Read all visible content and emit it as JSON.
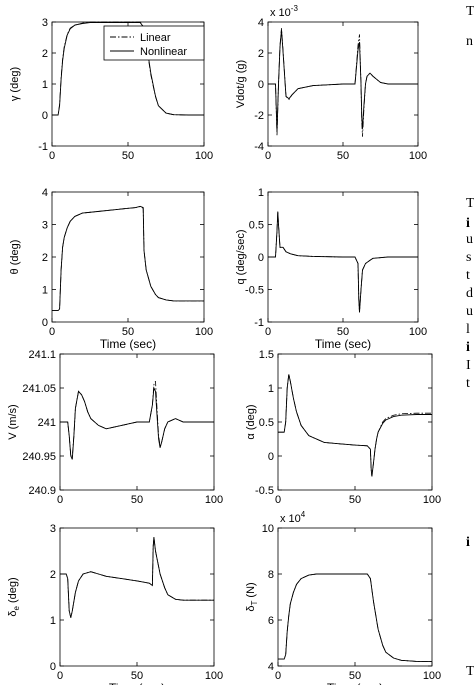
{
  "chart_data": [
    {
      "type": "line",
      "ylabel": "γ (deg)",
      "xlabel": "",
      "xlim": [
        0,
        100
      ],
      "ylim": [
        -1,
        3
      ],
      "xticks": [
        "0",
        "50",
        "100"
      ],
      "yticks": [
        "-1",
        "0",
        "1",
        "2",
        "3"
      ],
      "legend": {
        "placement": "top",
        "entries": [
          "Linear",
          "Nonlinear"
        ]
      },
      "series": [
        {
          "name": "Linear",
          "style": "dash-dot",
          "x": [
            0,
            4,
            5,
            6,
            7,
            8,
            10,
            12,
            15,
            20,
            25,
            30,
            40,
            50,
            55,
            58,
            60,
            62,
            65,
            68,
            70,
            75,
            80,
            90,
            100
          ],
          "y": [
            0,
            0,
            0.35,
            1.2,
            1.8,
            2.2,
            2.6,
            2.8,
            2.9,
            2.96,
            3,
            3,
            3,
            3,
            3,
            3,
            2.85,
            2.3,
            1.3,
            0.6,
            0.3,
            0.06,
            0.01,
            0,
            0
          ]
        },
        {
          "name": "Nonlinear",
          "style": "solid",
          "x": [
            0,
            4,
            5,
            6,
            7,
            8,
            10,
            12,
            15,
            20,
            25,
            30,
            40,
            50,
            55,
            58,
            60,
            62,
            65,
            68,
            70,
            75,
            80,
            90,
            100
          ],
          "y": [
            0,
            0,
            0.3,
            1.15,
            1.75,
            2.15,
            2.58,
            2.78,
            2.9,
            2.95,
            2.98,
            2.98,
            2.98,
            2.98,
            2.98,
            2.98,
            2.85,
            2.35,
            1.35,
            0.62,
            0.3,
            0.06,
            0.01,
            0,
            0
          ]
        }
      ]
    },
    {
      "type": "line",
      "ylabel": "Vdot/g (g)",
      "xlabel": "",
      "scale_label": "x 10",
      "scale_exponent": "-3",
      "xlim": [
        0,
        100
      ],
      "ylim": [
        -4,
        4
      ],
      "xticks": [
        "0",
        "50",
        "100"
      ],
      "yticks": [
        "-4",
        "-2",
        "0",
        "2",
        "4"
      ],
      "series": [
        {
          "name": "Linear",
          "style": "dash-dot",
          "x": [
            0,
            4,
            5,
            6,
            7,
            8,
            9,
            10,
            12,
            14,
            16,
            20,
            30,
            40,
            50,
            55,
            58,
            60,
            61,
            62,
            62.5,
            63,
            64,
            65,
            66,
            68,
            70,
            75,
            80,
            90,
            100
          ],
          "y": [
            0,
            0,
            0,
            -3.3,
            0,
            2.5,
            3.6,
            2.2,
            -0.8,
            -1,
            -0.7,
            -0.3,
            -0.1,
            -0.05,
            0,
            0,
            0,
            2.5,
            3.2,
            0,
            -2.5,
            -3.4,
            -1.5,
            0,
            0.5,
            0.7,
            0.5,
            0.1,
            0,
            0,
            0
          ]
        },
        {
          "name": "Nonlinear",
          "style": "solid",
          "x": [
            0,
            4,
            5,
            6,
            7,
            8,
            9,
            10,
            12,
            14,
            16,
            20,
            30,
            40,
            50,
            55,
            58,
            60,
            61,
            62,
            62.5,
            63,
            64,
            65,
            66,
            68,
            70,
            75,
            80,
            90,
            100
          ],
          "y": [
            0,
            0,
            0,
            -3.1,
            0,
            2.4,
            3.5,
            2.1,
            -0.8,
            -0.95,
            -0.7,
            -0.3,
            -0.1,
            -0.05,
            0,
            0,
            0,
            2.2,
            2.7,
            0,
            -2.2,
            -2.9,
            -1.3,
            0,
            0.5,
            0.7,
            0.5,
            0.1,
            0,
            0,
            0
          ]
        }
      ]
    },
    {
      "type": "line",
      "ylabel": "θ (deg)",
      "xlabel": "Time (sec)",
      "xlim": [
        0,
        100
      ],
      "ylim": [
        0,
        4
      ],
      "xticks": [
        "0",
        "50",
        "100"
      ],
      "yticks": [
        "0",
        "1",
        "2",
        "3",
        "4"
      ],
      "series": [
        {
          "name": "Linear",
          "style": "dash-dot",
          "x": [
            0,
            4,
            5,
            6,
            7,
            8,
            10,
            12,
            15,
            20,
            30,
            40,
            50,
            55,
            58,
            60,
            60.5,
            62,
            65,
            68,
            70,
            75,
            80,
            90,
            100
          ],
          "y": [
            0.35,
            0.35,
            0.4,
            1.6,
            2.3,
            2.6,
            2.9,
            3.1,
            3.25,
            3.35,
            3.4,
            3.45,
            3.5,
            3.52,
            3.55,
            3.5,
            2.2,
            1.6,
            1.1,
            0.85,
            0.75,
            0.68,
            0.65,
            0.65,
            0.65
          ]
        },
        {
          "name": "Nonlinear",
          "style": "solid",
          "x": [
            0,
            4,
            5,
            6,
            7,
            8,
            10,
            12,
            15,
            20,
            30,
            40,
            50,
            55,
            58,
            60,
            60.5,
            62,
            65,
            68,
            70,
            75,
            80,
            90,
            100
          ],
          "y": [
            0.35,
            0.35,
            0.4,
            1.6,
            2.3,
            2.6,
            2.9,
            3.1,
            3.25,
            3.35,
            3.4,
            3.45,
            3.5,
            3.52,
            3.56,
            3.52,
            2.2,
            1.6,
            1.1,
            0.85,
            0.75,
            0.68,
            0.65,
            0.65,
            0.65
          ]
        }
      ]
    },
    {
      "type": "line",
      "ylabel": "q (deg/sec)",
      "xlabel": "Time (sec)",
      "xlim": [
        0,
        100
      ],
      "ylim": [
        -1,
        1
      ],
      "xticks": [
        "0",
        "50",
        "100"
      ],
      "yticks": [
        "-1",
        "-0.5",
        "0",
        "0.5",
        "1"
      ],
      "series": [
        {
          "name": "Linear",
          "style": "dash-dot",
          "x": [
            0,
            4,
            5,
            6,
            6.5,
            7,
            8,
            9,
            10,
            12,
            15,
            20,
            30,
            50,
            58,
            60,
            60.5,
            61,
            62,
            63,
            64,
            65,
            68,
            70,
            80,
            100
          ],
          "y": [
            0,
            0,
            0,
            0.4,
            0.7,
            0.5,
            0.15,
            0.15,
            0.15,
            0.08,
            0.05,
            0.02,
            0.01,
            0,
            0,
            -0.1,
            -0.65,
            -0.85,
            -0.5,
            -0.2,
            -0.15,
            -0.1,
            -0.05,
            -0.02,
            0,
            0
          ]
        },
        {
          "name": "Nonlinear",
          "style": "solid",
          "x": [
            0,
            4,
            5,
            6,
            6.5,
            7,
            8,
            9,
            10,
            12,
            15,
            20,
            30,
            50,
            58,
            60,
            60.5,
            61,
            62,
            63,
            64,
            65,
            68,
            70,
            80,
            100
          ],
          "y": [
            0,
            0,
            0,
            0.4,
            0.7,
            0.5,
            0.15,
            0.15,
            0.15,
            0.08,
            0.05,
            0.02,
            0.01,
            0,
            0,
            -0.1,
            -0.65,
            -0.85,
            -0.5,
            -0.2,
            -0.15,
            -0.1,
            -0.05,
            -0.02,
            0,
            0
          ]
        }
      ]
    },
    {
      "type": "line",
      "ylabel": "V (m/s)",
      "xlabel": "",
      "xlim": [
        0,
        100
      ],
      "ylim": [
        240.9,
        241.1
      ],
      "xticks": [
        "0",
        "50",
        "100"
      ],
      "yticks": [
        "240.9",
        "240.95",
        "241",
        "241.05",
        "241.1"
      ],
      "series": [
        {
          "name": "Linear",
          "style": "dash-dot",
          "x": [
            0,
            4,
            5,
            6,
            7,
            8,
            9,
            10,
            12,
            14,
            16,
            18,
            20,
            25,
            30,
            40,
            50,
            58,
            60,
            61,
            62,
            63,
            64,
            65,
            66,
            68,
            70,
            75,
            80,
            90,
            100
          ],
          "y": [
            241,
            241,
            241,
            240.98,
            240.95,
            240.95,
            240.98,
            241.02,
            241.045,
            241.04,
            241.03,
            241.015,
            241.005,
            240.995,
            240.99,
            240.995,
            241,
            241,
            241.025,
            241.055,
            241.06,
            241.02,
            240.98,
            240.965,
            240.97,
            240.99,
            241,
            241.005,
            241,
            241,
            241
          ]
        },
        {
          "name": "Nonlinear",
          "style": "solid",
          "x": [
            0,
            4,
            5,
            6,
            7,
            8,
            9,
            10,
            12,
            14,
            16,
            18,
            20,
            25,
            30,
            40,
            50,
            58,
            60,
            61,
            62,
            63,
            64,
            65,
            66,
            68,
            70,
            75,
            80,
            90,
            100
          ],
          "y": [
            241,
            241,
            241,
            240.98,
            240.95,
            240.945,
            240.98,
            241.02,
            241.045,
            241.04,
            241.03,
            241.015,
            241.005,
            240.995,
            240.99,
            240.995,
            241,
            241,
            241.025,
            241.05,
            241.045,
            241.01,
            240.975,
            240.962,
            240.97,
            240.99,
            241,
            241.005,
            241,
            241,
            241
          ]
        }
      ]
    },
    {
      "type": "line",
      "ylabel": "α (deg)",
      "xlabel": "",
      "xlim": [
        0,
        100
      ],
      "ylim": [
        -0.5,
        1.5
      ],
      "xticks": [
        "0",
        "50",
        "100"
      ],
      "yticks": [
        "-0.5",
        "0",
        "0.5",
        "1",
        "1.5"
      ],
      "series": [
        {
          "name": "Linear",
          "style": "dash-dot",
          "x": [
            0,
            4,
            5,
            6,
            7,
            8,
            10,
            12,
            15,
            20,
            30,
            40,
            50,
            58,
            60,
            60.5,
            61,
            62,
            63,
            64,
            65,
            68,
            70,
            75,
            80,
            90,
            100
          ],
          "y": [
            0.35,
            0.35,
            0.5,
            1.0,
            1.2,
            1.1,
            0.85,
            0.65,
            0.45,
            0.3,
            0.2,
            0.18,
            0.16,
            0.15,
            0.1,
            -0.2,
            -0.3,
            -0.1,
            0.1,
            0.25,
            0.35,
            0.5,
            0.55,
            0.6,
            0.62,
            0.63,
            0.63
          ]
        },
        {
          "name": "Nonlinear",
          "style": "solid",
          "x": [
            0,
            4,
            5,
            6,
            7,
            8,
            10,
            12,
            15,
            20,
            30,
            40,
            50,
            58,
            60,
            60.5,
            61,
            62,
            63,
            64,
            65,
            68,
            70,
            75,
            80,
            90,
            100
          ],
          "y": [
            0.35,
            0.35,
            0.5,
            1.0,
            1.2,
            1.1,
            0.85,
            0.65,
            0.45,
            0.3,
            0.2,
            0.18,
            0.16,
            0.15,
            0.1,
            -0.2,
            -0.3,
            -0.1,
            0.1,
            0.25,
            0.35,
            0.48,
            0.53,
            0.58,
            0.6,
            0.61,
            0.61
          ]
        }
      ]
    },
    {
      "type": "line",
      "ylabel": "δ_e (deg)",
      "xlabel": "Time (sec)",
      "xlim": [
        0,
        100
      ],
      "ylim": [
        0,
        3
      ],
      "xticks": [
        "0",
        "50",
        "100"
      ],
      "yticks": [
        "0",
        "1",
        "2",
        "3"
      ],
      "series": [
        {
          "name": "Linear",
          "style": "dash-dot",
          "x": [
            0,
            4,
            5,
            6,
            7,
            8,
            10,
            12,
            15,
            20,
            25,
            30,
            40,
            50,
            58,
            60,
            60.5,
            61,
            62,
            65,
            68,
            70,
            75,
            80,
            90,
            100
          ],
          "y": [
            2,
            2,
            1.9,
            1.2,
            1.05,
            1.2,
            1.6,
            1.85,
            2,
            2.05,
            2,
            1.95,
            1.9,
            1.85,
            1.8,
            1.75,
            2.6,
            2.8,
            2.5,
            2,
            1.7,
            1.55,
            1.45,
            1.43,
            1.43,
            1.43
          ]
        },
        {
          "name": "Nonlinear",
          "style": "solid",
          "x": [
            0,
            4,
            5,
            6,
            7,
            8,
            10,
            12,
            15,
            20,
            25,
            30,
            40,
            50,
            58,
            60,
            60.5,
            61,
            62,
            65,
            68,
            70,
            75,
            80,
            90,
            100
          ],
          "y": [
            2,
            2,
            1.9,
            1.2,
            1.05,
            1.2,
            1.6,
            1.85,
            2,
            2.05,
            2,
            1.95,
            1.9,
            1.85,
            1.8,
            1.75,
            2.6,
            2.8,
            2.5,
            2,
            1.7,
            1.55,
            1.45,
            1.43,
            1.43,
            1.43
          ]
        }
      ]
    },
    {
      "type": "line",
      "ylabel": "δ_T (N)",
      "xlabel": "Time (sec)",
      "scale_label": "x 10",
      "scale_exponent": "4",
      "xlim": [
        0,
        100
      ],
      "ylim": [
        4,
        10
      ],
      "xticks": [
        "0",
        "50",
        "100"
      ],
      "yticks": [
        "4",
        "6",
        "8",
        "10"
      ],
      "series": [
        {
          "name": "Linear",
          "style": "dash-dot",
          "x": [
            0,
            4,
            5,
            6,
            7,
            8,
            10,
            12,
            15,
            20,
            25,
            30,
            40,
            50,
            58,
            60,
            62,
            65,
            68,
            70,
            75,
            80,
            90,
            100
          ],
          "y": [
            4.3,
            4.3,
            4.5,
            5.5,
            6.2,
            6.7,
            7.2,
            7.55,
            7.8,
            7.95,
            8,
            8,
            8,
            8,
            8,
            7.8,
            6.8,
            5.6,
            4.9,
            4.6,
            4.35,
            4.25,
            4.2,
            4.2
          ]
        },
        {
          "name": "Nonlinear",
          "style": "solid",
          "x": [
            0,
            4,
            5,
            6,
            7,
            8,
            10,
            12,
            15,
            20,
            25,
            30,
            40,
            50,
            58,
            60,
            62,
            65,
            68,
            70,
            75,
            80,
            90,
            100
          ],
          "y": [
            4.3,
            4.3,
            4.5,
            5.5,
            6.2,
            6.7,
            7.2,
            7.55,
            7.8,
            7.95,
            8,
            8,
            8,
            8,
            8,
            7.8,
            6.8,
            5.6,
            4.9,
            4.6,
            4.35,
            4.25,
            4.2,
            4.2
          ]
        }
      ]
    }
  ],
  "edge_text": [
    "T",
    "n",
    "T",
    "i",
    "u",
    "s",
    "t",
    "d",
    "u",
    "l",
    "i",
    "I",
    "t",
    "i",
    "T"
  ]
}
